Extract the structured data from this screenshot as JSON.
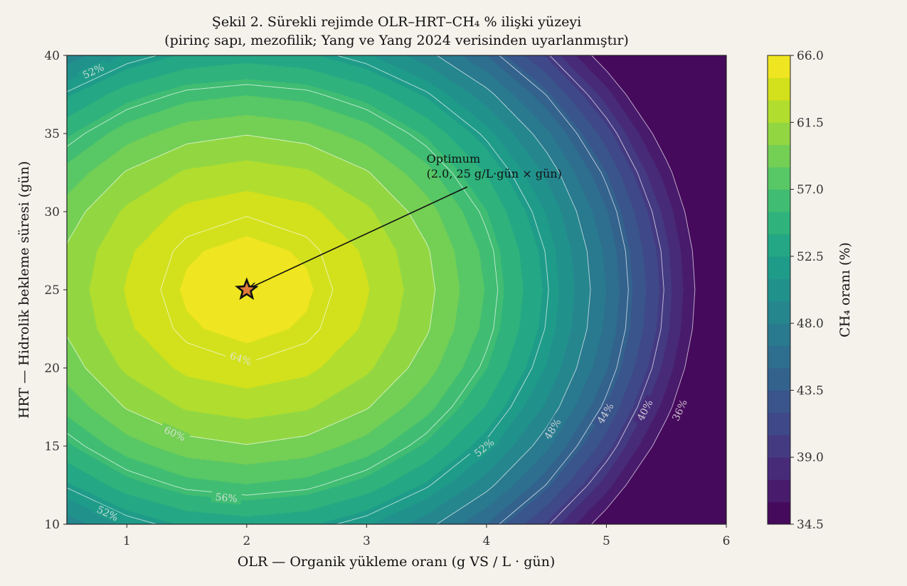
{
  "chart_data": {
    "type": "contour",
    "title": [
      "Şekil 2. Sürekli rejimde OLR–HRT–CH₄ % ilişki yüzeyi",
      "(pirinç sapı, mezofilik; Yang ve Yang 2024 verisinden uyarlanmıştır)"
    ],
    "xlabel": "OLR — Organik yükleme oranı (g VS / L · gün)",
    "ylabel": "HRT — Hidrolik bekleme süresi (gün)",
    "xlim": [
      0.5,
      6
    ],
    "ylim": [
      10,
      40
    ],
    "x_ticks": [
      "1",
      "2",
      "3",
      "4",
      "5",
      "6"
    ],
    "y_ticks": [
      "10",
      "15",
      "20",
      "25",
      "30",
      "35",
      "40"
    ],
    "colormap": "viridis",
    "grid": {
      "x": [
        0.5,
        1.0,
        1.5,
        2.0,
        2.5,
        3.0,
        3.5,
        4.0,
        4.5,
        5.0,
        5.5,
        6.0
      ],
      "y": [
        10,
        12.5,
        15,
        17.5,
        20,
        22.5,
        25,
        27.5,
        30,
        32.5,
        35,
        37.5,
        40
      ],
      "z": [
        [
          48.62,
          51.22,
          52.78,
          53.3,
          52.78,
          51.22,
          48.62,
          44.98,
          40.3,
          34.58,
          27.82,
          20.02
        ],
        [
          52.25,
          54.85,
          56.41,
          56.93,
          56.41,
          54.85,
          52.25,
          48.61,
          43.93,
          38.21,
          31.45,
          23.65
        ],
        [
          55.23,
          57.83,
          59.39,
          59.91,
          59.39,
          57.83,
          55.23,
          51.59,
          46.91,
          41.19,
          34.43,
          26.63
        ],
        [
          57.54,
          60.14,
          61.7,
          62.22,
          61.7,
          60.14,
          57.54,
          53.9,
          49.22,
          43.5,
          36.74,
          28.94
        ],
        [
          59.2,
          61.8,
          63.36,
          63.88,
          63.36,
          61.8,
          59.2,
          55.56,
          50.88,
          45.16,
          38.4,
          30.6
        ],
        [
          60.19,
          62.79,
          64.35,
          64.87,
          64.35,
          62.79,
          60.19,
          56.55,
          51.87,
          46.15,
          39.39,
          31.59
        ],
        [
          60.52,
          63.12,
          64.68,
          65.2,
          64.68,
          63.12,
          60.52,
          56.88,
          52.2,
          46.48,
          39.72,
          31.92
        ],
        [
          60.19,
          62.79,
          64.35,
          64.87,
          64.35,
          62.79,
          60.19,
          56.55,
          51.87,
          46.15,
          39.39,
          31.59
        ],
        [
          59.2,
          61.8,
          63.36,
          63.88,
          63.36,
          61.8,
          59.2,
          55.56,
          50.88,
          45.16,
          38.4,
          30.6
        ],
        [
          57.54,
          60.14,
          61.7,
          62.22,
          61.7,
          60.14,
          57.54,
          53.9,
          49.22,
          43.5,
          36.74,
          28.94
        ],
        [
          55.23,
          57.83,
          59.39,
          59.91,
          59.39,
          57.83,
          55.23,
          51.59,
          46.91,
          41.19,
          34.43,
          26.63
        ],
        [
          52.25,
          54.85,
          56.41,
          56.93,
          56.41,
          54.85,
          52.25,
          48.61,
          43.93,
          38.21,
          31.45,
          23.65
        ],
        [
          48.62,
          51.22,
          52.78,
          53.3,
          52.78,
          51.22,
          48.62,
          44.98,
          40.3,
          34.58,
          27.82,
          20.02
        ]
      ]
    },
    "fill_levels": {
      "min": 34.5,
      "max": 66.0,
      "step": 1.5
    },
    "line_levels": [
      36,
      40,
      44,
      48,
      52,
      56,
      60,
      64
    ],
    "contour_labels": [
      {
        "text": "52%",
        "at": [
          0.72,
          39.0
        ]
      },
      {
        "text": "64%",
        "at": [
          1.95,
          20.6
        ]
      },
      {
        "text": "60%",
        "at": [
          1.4,
          15.8
        ]
      },
      {
        "text": "56%",
        "at": [
          1.83,
          11.7
        ]
      },
      {
        "text": "52%",
        "at": [
          0.84,
          10.7
        ]
      },
      {
        "text": "52%",
        "at": [
          3.98,
          14.9
        ]
      },
      {
        "text": "48%",
        "at": [
          4.55,
          16.1
        ]
      },
      {
        "text": "44%",
        "at": [
          4.99,
          17.1
        ]
      },
      {
        "text": "40%",
        "at": [
          5.32,
          17.3
        ]
      },
      {
        "text": "36%",
        "at": [
          5.61,
          17.3
        ]
      }
    ],
    "colorbar": {
      "label": "CH₄ oranı (%)",
      "ticks": [
        "34.5",
        "39.0",
        "43.5",
        "48.0",
        "52.5",
        "57.0",
        "61.5",
        "66.0"
      ]
    },
    "annotation": {
      "text": [
        "Optimum",
        "(2.0, 25 g/L·gün × gün)"
      ],
      "point": [
        2.0,
        25
      ],
      "text_at": [
        3.5,
        32
      ],
      "marker": "star",
      "marker_color": "#e07b39"
    }
  }
}
